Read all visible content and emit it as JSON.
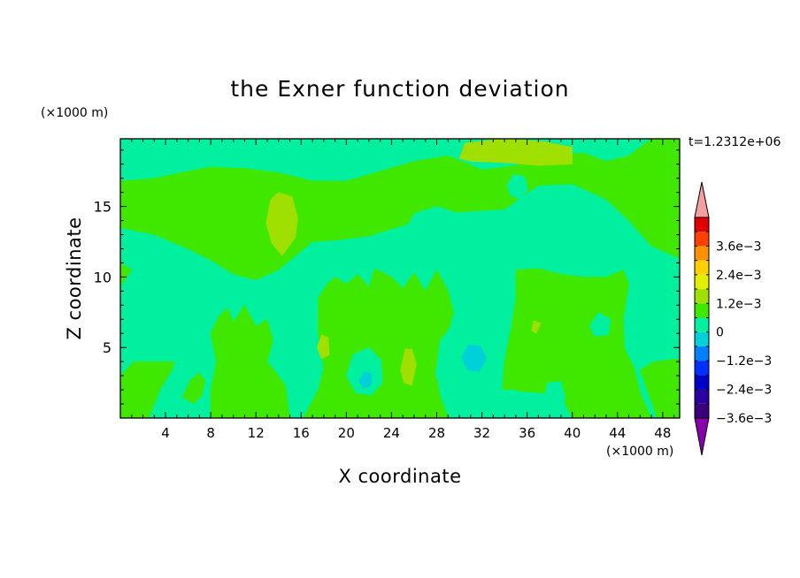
{
  "chart_data": {
    "type": "heatmap",
    "title": "the Exner function deviation",
    "xlabel": "X coordinate",
    "ylabel": "Z coordinate",
    "x_unit": "(×1000 m)",
    "y_unit": "(×1000 m)",
    "time_label": "t=1.2312e+06",
    "xlim": [
      0,
      49.5
    ],
    "ylim": [
      0,
      19.8
    ],
    "x_ticks": [
      4,
      8,
      12,
      16,
      20,
      24,
      28,
      32,
      36,
      40,
      44,
      48
    ],
    "y_ticks": [
      5,
      10,
      15
    ],
    "colorbar": {
      "levels": [
        -0.0042,
        -0.0036,
        -0.003,
        -0.0024,
        -0.0018,
        -0.0012,
        -0.0006,
        0,
        0.0006,
        0.0012,
        0.0018,
        0.0024,
        0.003,
        0.0036,
        0.0042
      ],
      "colors": [
        "#8800aa",
        "#3a007a",
        "#2b00a0",
        "#0000c8",
        "#0030ff",
        "#0080ff",
        "#00d0d8",
        "#00f0a0",
        "#40e800",
        "#a0e000",
        "#e0f000",
        "#ffd000",
        "#ff9000",
        "#ff4000",
        "#e00000",
        "#f5a0a0"
      ],
      "tick_labels": [
        "3.6e−3",
        "2.4e−3",
        "1.2e−3",
        "0",
        "−1.2e−3",
        "−2.4e−3",
        "−3.6e−3"
      ]
    },
    "field_levels": {
      "background": "0 to -0.6e-3 (teal-green)",
      "values_range": [
        -0.0012,
        0.0018
      ]
    },
    "regions": [
      {
        "level": 0.0003,
        "polygon": [
          [
            0,
            13.5
          ],
          [
            3,
            13
          ],
          [
            6,
            12
          ],
          [
            8,
            11.2
          ],
          [
            10,
            10.2
          ],
          [
            12,
            9.8
          ],
          [
            14,
            10.5
          ],
          [
            17,
            12.5
          ],
          [
            19,
            12.6
          ],
          [
            22,
            12.9
          ],
          [
            26,
            13.9
          ],
          [
            30,
            14.6
          ],
          [
            34,
            14.8
          ],
          [
            37,
            16.5
          ],
          [
            40,
            16.6
          ],
          [
            43,
            15.5
          ],
          [
            45,
            14
          ],
          [
            47,
            12.2
          ],
          [
            49.5,
            11.3
          ],
          [
            49.5,
            19.8
          ],
          [
            47,
            19.8
          ],
          [
            45,
            18.6
          ],
          [
            43,
            18.2
          ],
          [
            41,
            18.8
          ],
          [
            38,
            18.6
          ],
          [
            35,
            17.9
          ],
          [
            32,
            17.6
          ],
          [
            29,
            18.6
          ],
          [
            26,
            18.2
          ],
          [
            23,
            17.5
          ],
          [
            20,
            16.8
          ],
          [
            17,
            16.8
          ],
          [
            14,
            17.4
          ],
          [
            11,
            17.7
          ],
          [
            8,
            17.8
          ],
          [
            6,
            17.5
          ],
          [
            3,
            17
          ],
          [
            0,
            16.8
          ]
        ]
      },
      {
        "level": 0.0003,
        "polygon": [
          [
            0,
            9.3
          ],
          [
            1,
            10.5
          ],
          [
            0,
            11
          ]
        ]
      },
      {
        "level": 0.0003,
        "polygon": [
          [
            8,
            0
          ],
          [
            8,
            2
          ],
          [
            8.5,
            4
          ],
          [
            8,
            6
          ],
          [
            8.7,
            7.2
          ],
          [
            9.5,
            7.8
          ],
          [
            10,
            6.8
          ],
          [
            11,
            8
          ],
          [
            12,
            6.5
          ],
          [
            13,
            7
          ],
          [
            13.5,
            5.5
          ],
          [
            13,
            4
          ],
          [
            14,
            3
          ],
          [
            14.6,
            2.3
          ],
          [
            15,
            0
          ]
        ]
      },
      {
        "level": 0.0003,
        "polygon": [
          [
            16.2,
            0
          ],
          [
            17.5,
            2
          ],
          [
            18,
            3.5
          ],
          [
            17.5,
            6
          ],
          [
            17.5,
            8.5
          ],
          [
            18.3,
            9.5
          ],
          [
            19,
            10
          ],
          [
            20,
            9.5
          ],
          [
            21,
            10.2
          ],
          [
            22,
            9.3
          ],
          [
            22.5,
            10.6
          ],
          [
            24,
            10
          ],
          [
            25,
            9.2
          ],
          [
            26,
            10.3
          ],
          [
            27,
            9
          ],
          [
            28,
            10.5
          ],
          [
            29,
            9
          ],
          [
            29.5,
            7.5
          ],
          [
            28.8,
            5.5
          ],
          [
            27.9,
            3.5
          ],
          [
            28.3,
            1.6
          ],
          [
            29,
            0
          ]
        ]
      },
      {
        "level": 0.0003,
        "polygon": [
          [
            33.8,
            2
          ],
          [
            34,
            4
          ],
          [
            34.6,
            6.5
          ],
          [
            35,
            8.5
          ],
          [
            35,
            10.5
          ],
          [
            37,
            10.6
          ],
          [
            39,
            10.2
          ],
          [
            41,
            10
          ],
          [
            43,
            10
          ],
          [
            44.5,
            10.5
          ],
          [
            45,
            9.5
          ],
          [
            44.5,
            7
          ],
          [
            44.6,
            5
          ],
          [
            45.5,
            3.5
          ],
          [
            46,
            1.8
          ],
          [
            47,
            0
          ],
          [
            40,
            0
          ],
          [
            39,
            1.6
          ],
          [
            37,
            1.8
          ]
        ]
      },
      {
        "level": 0.0003,
        "polygon": [
          [
            2.5,
            0
          ],
          [
            3.5,
            2
          ],
          [
            4.5,
            3.3
          ],
          [
            4.8,
            4
          ],
          [
            3,
            4
          ],
          [
            1.2,
            4
          ],
          [
            0,
            3
          ],
          [
            0,
            0
          ]
        ]
      },
      {
        "level": 0.0003,
        "polygon": [
          [
            5.5,
            1.5
          ],
          [
            6.2,
            2.7
          ],
          [
            7,
            3.2
          ],
          [
            7.5,
            2.6
          ],
          [
            7.2,
            1.6
          ],
          [
            6.5,
            1
          ]
        ]
      },
      {
        "level": 0.0003,
        "polygon": [
          [
            46,
            3.4
          ],
          [
            47.2,
            4
          ],
          [
            49.5,
            4.2
          ],
          [
            49.5,
            0
          ],
          [
            47.5,
            0
          ]
        ]
      },
      {
        "level": 0.0009,
        "polygon": [
          [
            12.9,
            13.8
          ],
          [
            13.3,
            15.5
          ],
          [
            14,
            16
          ],
          [
            15.2,
            15.7
          ],
          [
            15.7,
            14.2
          ],
          [
            15.5,
            12.8
          ],
          [
            14.3,
            11.5
          ],
          [
            13.4,
            12.4
          ]
        ]
      },
      {
        "level": 0.0009,
        "polygon": [
          [
            24.8,
            3.4
          ],
          [
            25.2,
            4.9
          ],
          [
            25.8,
            4.9
          ],
          [
            26.2,
            3.8
          ],
          [
            25.8,
            2.3
          ],
          [
            25.1,
            2.5
          ]
        ]
      },
      {
        "level": 0.0009,
        "polygon": [
          [
            17.4,
            5
          ],
          [
            17.8,
            5.9
          ],
          [
            18.4,
            5.7
          ],
          [
            18.5,
            4.5
          ],
          [
            17.8,
            4.2
          ]
        ]
      },
      {
        "level": 0.0009,
        "polygon": [
          [
            30,
            18.4
          ],
          [
            30.5,
            19.5
          ],
          [
            34,
            19.8
          ],
          [
            37.5,
            19.6
          ],
          [
            40,
            19.2
          ],
          [
            40,
            18
          ],
          [
            37,
            17.9
          ],
          [
            34,
            18.1
          ],
          [
            31,
            18.2
          ]
        ]
      },
      {
        "level": 0.0009,
        "polygon": [
          [
            36.4,
            6.2
          ],
          [
            36.6,
            6.9
          ],
          [
            37.2,
            6.7
          ],
          [
            36.8,
            6
          ]
        ]
      },
      {
        "level": -0.0003,
        "polygon": [
          [
            5.5,
            17.8
          ],
          [
            5.7,
            18.8
          ],
          [
            7.5,
            19.4
          ],
          [
            10,
            19.3
          ],
          [
            12,
            18.9
          ],
          [
            10.5,
            18.3
          ],
          [
            8,
            18
          ]
        ]
      },
      {
        "level": -0.0003,
        "polygon": [
          [
            25,
            13
          ],
          [
            26,
            14.5
          ],
          [
            28,
            15
          ],
          [
            30,
            14.5
          ],
          [
            31,
            13.5
          ],
          [
            30,
            12.5
          ],
          [
            28,
            12.5
          ],
          [
            26,
            12.3
          ]
        ]
      },
      {
        "level": -0.0003,
        "polygon": [
          [
            34.2,
            16.5
          ],
          [
            34.8,
            17.3
          ],
          [
            35.8,
            17.1
          ],
          [
            36.1,
            16.1
          ],
          [
            35.3,
            15.5
          ],
          [
            34.5,
            15.8
          ]
        ]
      },
      {
        "level": -0.0003,
        "polygon": [
          [
            41.5,
            6.5
          ],
          [
            42.3,
            7.5
          ],
          [
            43.4,
            7
          ],
          [
            43.2,
            5.9
          ],
          [
            42,
            5.8
          ]
        ]
      },
      {
        "level": -0.0003,
        "polygon": [
          [
            46.5,
            5.5
          ],
          [
            47.2,
            6.9
          ],
          [
            48.8,
            6.7
          ],
          [
            48.8,
            5.4
          ],
          [
            47.5,
            5.2
          ]
        ]
      },
      {
        "level": -0.0003,
        "polygon": [
          [
            20,
            3
          ],
          [
            20.6,
            4.5
          ],
          [
            22,
            5
          ],
          [
            23.1,
            4.1
          ],
          [
            23.2,
            2.5
          ],
          [
            22.2,
            1.6
          ],
          [
            20.8,
            1.8
          ]
        ]
      },
      {
        "level": -0.0003,
        "polygon": [
          [
            27.9,
            3
          ],
          [
            28.3,
            5.5
          ],
          [
            29.7,
            6.9
          ],
          [
            31.5,
            7.1
          ],
          [
            33,
            6
          ],
          [
            33.5,
            3.8
          ],
          [
            32.5,
            2
          ],
          [
            30,
            1.6
          ],
          [
            28.5,
            2
          ]
        ]
      },
      {
        "level": -0.0003,
        "polygon": [
          [
            37.5,
            1.5
          ],
          [
            37.8,
            2.5
          ],
          [
            39,
            2.6
          ],
          [
            39.4,
            1.4
          ],
          [
            38.9,
            0.4
          ],
          [
            37.8,
            0.4
          ]
        ]
      },
      {
        "level": -0.0003,
        "polygon": [
          [
            33.5,
            1
          ],
          [
            34,
            2
          ],
          [
            35,
            2
          ],
          [
            35.2,
            1
          ],
          [
            34.5,
            0.3
          ]
        ]
      },
      {
        "level": -0.0009,
        "polygon": [
          [
            30.2,
            4.3
          ],
          [
            30.8,
            5.2
          ],
          [
            31.9,
            5.1
          ],
          [
            32.4,
            4.2
          ],
          [
            31.8,
            3.3
          ],
          [
            30.7,
            3.4
          ]
        ]
      },
      {
        "level": -0.0009,
        "polygon": [
          [
            21.1,
            2.6
          ],
          [
            21.6,
            3.3
          ],
          [
            22.3,
            3.1
          ],
          [
            22.2,
            2.3
          ],
          [
            21.5,
            2.1
          ]
        ]
      }
    ]
  }
}
